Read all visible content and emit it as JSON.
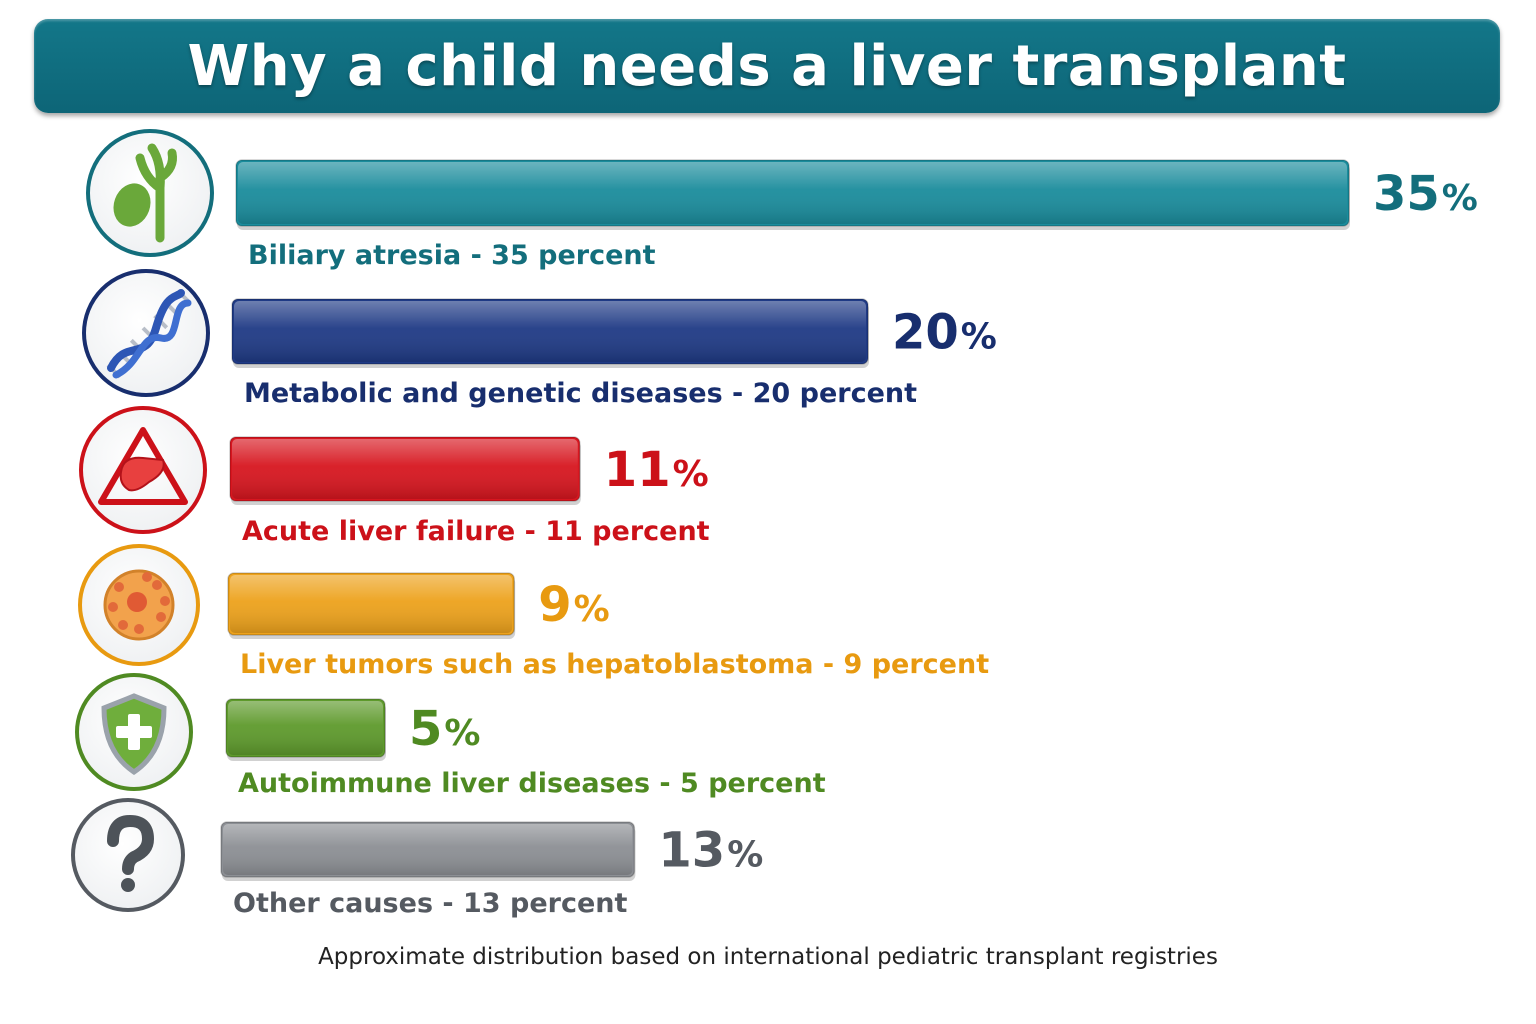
{
  "chart_data": {
    "type": "bar",
    "orientation": "horizontal",
    "title": "Why a child needs a liver transplant",
    "categories": [
      "Biliary atresia - 35 percent",
      "Metabolic and genetic diseases - 20 percent",
      "Acute liver failure - 11 percent",
      "Liver tumors such as hepatoblastoma - 9 percent",
      "Autoimmune liver diseases - 5 percent",
      "Other causes - 13 percent"
    ],
    "values": [
      35,
      20,
      11,
      9,
      5,
      13
    ],
    "value_labels": [
      "35",
      "20",
      "11",
      "9",
      "5",
      "13"
    ],
    "value_unit": "%",
    "colors": [
      "#1a8c9c",
      "#1f3a85",
      "#d7161f",
      "#eda21c",
      "#5e9a2c",
      "#8c8f94"
    ],
    "label_colors": [
      "#136e7c",
      "#182e6e",
      "#cc1119",
      "#e89a10",
      "#4f8a22",
      "#555a61"
    ],
    "icons": [
      "gallbladder-icon",
      "dna-icon",
      "warning-liver-icon",
      "tumor-cell-icon",
      "shield-cross-icon",
      "question-mark-icon"
    ],
    "xlim": [
      0,
      35
    ],
    "grid": false,
    "legend": "none"
  },
  "footnote": "Approximate distribution based on international pediatric transplant registries"
}
